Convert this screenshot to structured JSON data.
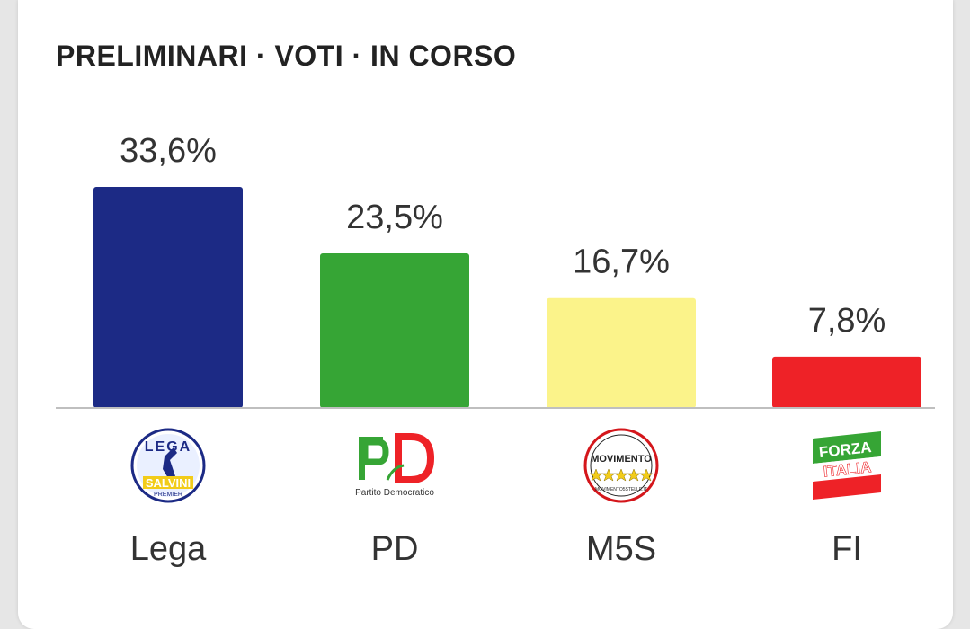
{
  "header": {
    "title": "PRELIMINARI · VOTI · IN CORSO"
  },
  "chart_data": {
    "type": "bar",
    "categories": [
      "Lega",
      "PD",
      "M5S",
      "FI"
    ],
    "values": [
      33.6,
      23.5,
      16.7,
      7.8
    ],
    "value_labels": [
      "33,6%",
      "23,5%",
      "16,7%",
      "7,8%"
    ],
    "colors": [
      "#1c2a85",
      "#36a535",
      "#fbf38a",
      "#ee2227"
    ],
    "logos": [
      "lega-logo",
      "pd-logo",
      "m5s-logo",
      "fi-logo"
    ],
    "ylim": [
      0,
      33.6
    ],
    "grid": false,
    "legend": "none"
  },
  "logo_text": {
    "lega": "LEGA",
    "lega_sub": "SALVINI",
    "lega_sub2": "PREMIER",
    "pd": "PD",
    "pd_sub": "Partito Democratico",
    "m5s": "MOVIMENTO",
    "m5s_sub": "MOVIMENTO5STELLE.IT",
    "fi1": "FORZA",
    "fi2": "ITALIA"
  }
}
